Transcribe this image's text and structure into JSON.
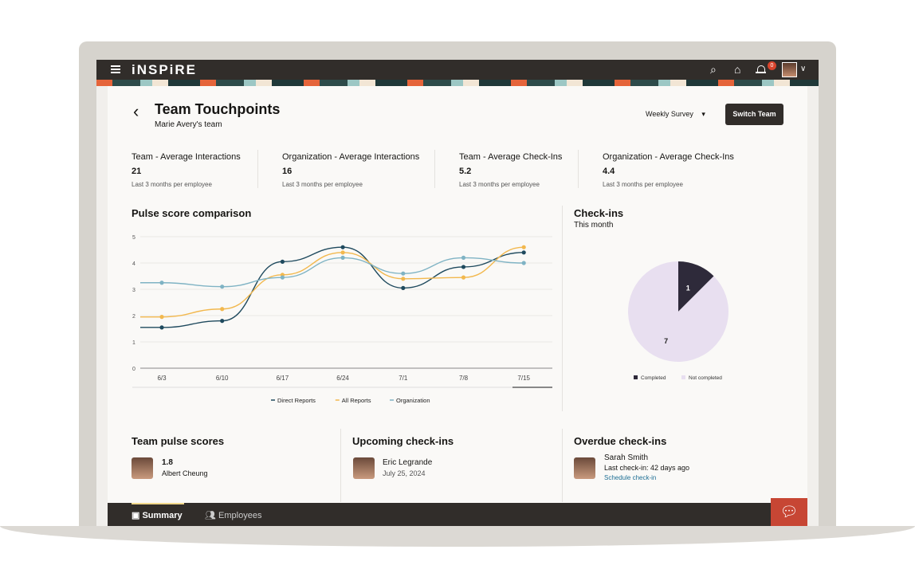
{
  "app": {
    "logo": "iNSPiRE",
    "notification_count": "0"
  },
  "page": {
    "title": "Team Touchpoints",
    "subtitle": "Marie Avery's team",
    "survey_select": "Weekly Survey",
    "switch_team": "Switch Team"
  },
  "stats": [
    {
      "label": "Team - Average Interactions",
      "value": "21",
      "sub": "Last 3 months per employee"
    },
    {
      "label": "Organization - Average Interactions",
      "value": "16",
      "sub": "Last 3 months per employee"
    },
    {
      "label": "Team - Average Check-Ins",
      "value": "5.2",
      "sub": "Last 3 months per employee"
    },
    {
      "label": "Organization - Average Check-Ins",
      "value": "4.4",
      "sub": "Last 3 months per employee"
    }
  ],
  "chart_data": [
    {
      "type": "line",
      "title": "Pulse score comparison",
      "categories": [
        "6/3",
        "6/10",
        "6/17",
        "6/24",
        "7/1",
        "7/8",
        "7/15"
      ],
      "ylim": [
        0,
        5
      ],
      "yticks": [
        "0",
        "1",
        "2",
        "3",
        "4",
        "5"
      ],
      "series": [
        {
          "name": "Direct Reports",
          "color": "#1f4a5e",
          "values": [
            1.55,
            1.8,
            4.05,
            4.6,
            3.05,
            3.85,
            4.4
          ]
        },
        {
          "name": "All Reports",
          "color": "#f2b84e",
          "values": [
            1.95,
            2.25,
            3.55,
            4.4,
            3.4,
            3.45,
            4.6
          ]
        },
        {
          "name": "Organization",
          "color": "#7fb3c4",
          "values": [
            3.25,
            3.1,
            3.45,
            4.2,
            3.6,
            4.2,
            4.0
          ]
        }
      ],
      "legend": "bottom"
    },
    {
      "type": "pie",
      "title": "Check-ins",
      "subtitle": "This month",
      "slices": [
        {
          "name": "Completed",
          "value": 1,
          "label": "1",
          "color": "#2e2a3a"
        },
        {
          "name": "Not completed",
          "value": 7,
          "label": "7",
          "color": "#e8dff0"
        }
      ],
      "legend": "bottom"
    }
  ],
  "sections": {
    "pulse": {
      "title": "Team pulse scores",
      "score": "1.8",
      "name": "Albert Cheung"
    },
    "upcoming": {
      "title": "Upcoming check-ins",
      "name": "Eric Legrande",
      "date": "July 25, 2024"
    },
    "overdue": {
      "title": "Overdue check-ins",
      "name": "Sarah Smith",
      "last": "Last check-in: 42 days ago",
      "link": "Schedule check-in"
    }
  },
  "bottom_tabs": [
    {
      "label": "Summary"
    },
    {
      "label": "Employees"
    }
  ]
}
